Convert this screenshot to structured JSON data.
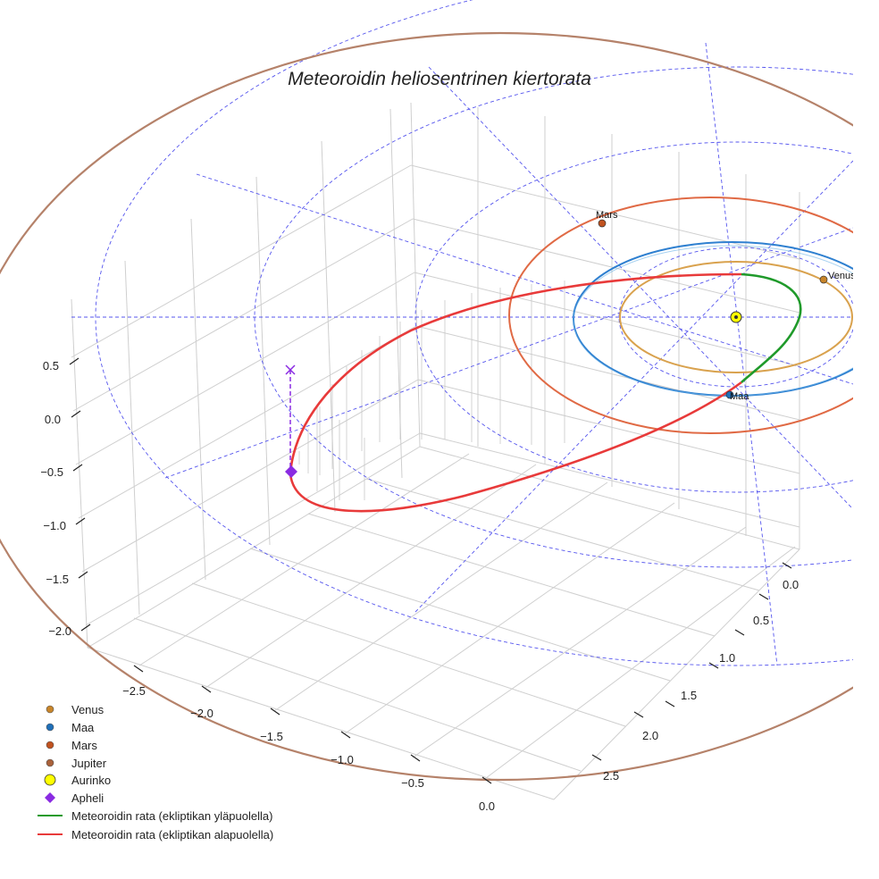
{
  "chart_data": {
    "type": "3d-line",
    "title": "Meteoroidin heliosentrinen kiertorata",
    "x_ticks": [
      "−2.5",
      "−2.0",
      "−1.5",
      "−1.0",
      "−0.5",
      "0.0"
    ],
    "y_ticks": [
      "0.0",
      "0.5",
      "1.0",
      "1.5",
      "2.0",
      "2.5"
    ],
    "z_ticks": [
      "0.5",
      "0.0",
      "−0.5",
      "−1.0",
      "−1.5",
      "−2.0"
    ],
    "bodies": [
      {
        "name": "Venus",
        "label": "Venus",
        "color": "#c8852a",
        "orbit_color": "#d9a24e"
      },
      {
        "name": "Maa",
        "label": "Maa",
        "color": "#1f6fb8",
        "orbit_color": "#2f80d0"
      },
      {
        "name": "Mars",
        "label": "Mars",
        "color": "#c0521f",
        "orbit_color": "#e06a45"
      },
      {
        "name": "Jupiter",
        "label": "",
        "color": "#a9613a",
        "orbit_color": "#b5826a"
      }
    ],
    "sun": {
      "name": "Aurinko",
      "color": "#ffff00"
    },
    "aphelion": {
      "name": "Apheli",
      "color": "#8a2be2"
    },
    "series": [
      {
        "name": "Meteoroidin rata (ekliptikan yläpuolella)",
        "color": "#1f9a2a"
      },
      {
        "name": "Meteoroidin rata (ekliptikan alapuolella)",
        "color": "#e83a3a"
      }
    ]
  },
  "legend": [
    {
      "label": "Venus",
      "kind": "dot",
      "color": "#c8852a"
    },
    {
      "label": "Maa",
      "kind": "dot",
      "color": "#1f6fb8"
    },
    {
      "label": "Mars",
      "kind": "dot",
      "color": "#c0521f"
    },
    {
      "label": "Jupiter",
      "kind": "dot",
      "color": "#a9613a"
    },
    {
      "label": "Aurinko",
      "kind": "sun",
      "color": "#ffff00"
    },
    {
      "label": "Apheli",
      "kind": "diamond",
      "color": "#8a2be2"
    },
    {
      "label": "Meteoroidin rata (ekliptikan yläpuolella)",
      "kind": "line",
      "color": "#1f9a2a"
    },
    {
      "label": "Meteoroidin rata (ekliptikan alapuolella)",
      "kind": "line",
      "color": "#e83a3a"
    }
  ]
}
